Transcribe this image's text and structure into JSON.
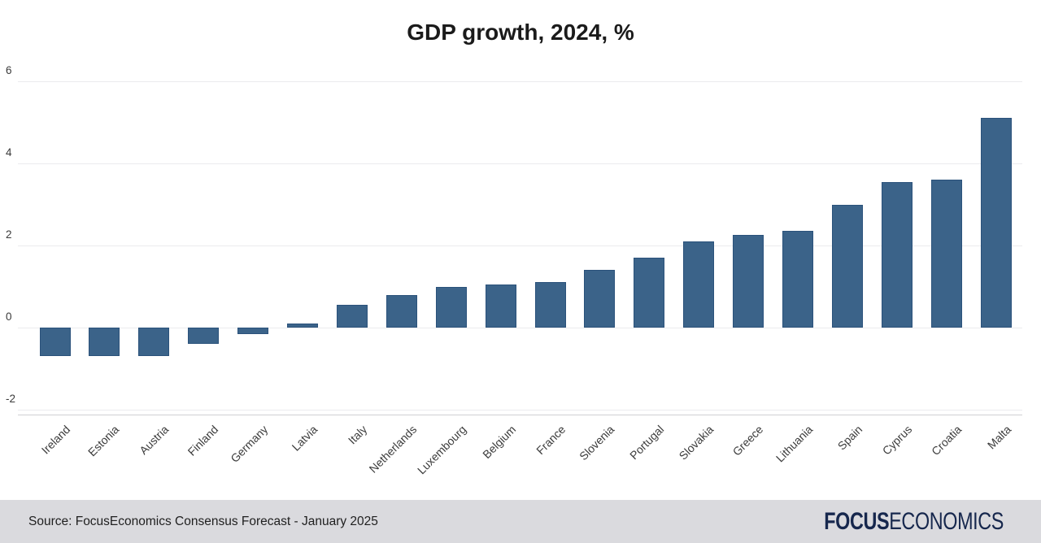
{
  "chart_data": {
    "type": "bar",
    "title": "GDP growth, 2024, %",
    "categories": [
      "Ireland",
      "Estonia",
      "Austria",
      "Finland",
      "Germany",
      "Latvia",
      "Italy",
      "Netherlands",
      "Luxembourg",
      "Belgium",
      "France",
      "Slovenia",
      "Portugal",
      "Slovakia",
      "Greece",
      "Lithuania",
      "Spain",
      "Cyprus",
      "Croatia",
      "Malta"
    ],
    "values": [
      -0.7,
      -0.7,
      -0.7,
      -0.4,
      -0.15,
      0.1,
      0.55,
      0.8,
      1.0,
      1.05,
      1.1,
      1.4,
      1.7,
      2.1,
      2.25,
      2.35,
      3.0,
      3.55,
      3.6,
      5.1
    ],
    "xlabel": "",
    "ylabel": "",
    "ylim": [
      -2,
      6
    ],
    "yticks": [
      6,
      4,
      2,
      0,
      -2
    ],
    "grid": true,
    "legend": false,
    "colors": {
      "bar": "#3b6389",
      "bar_border": "#2b527b",
      "logo_navy": "#16274d"
    }
  },
  "footer": {
    "source_text": "Source: FocusEconomics Consensus Forecast - January 2025",
    "logo": {
      "bold": "FOCUS",
      "regular": "ECONOMICS"
    }
  }
}
